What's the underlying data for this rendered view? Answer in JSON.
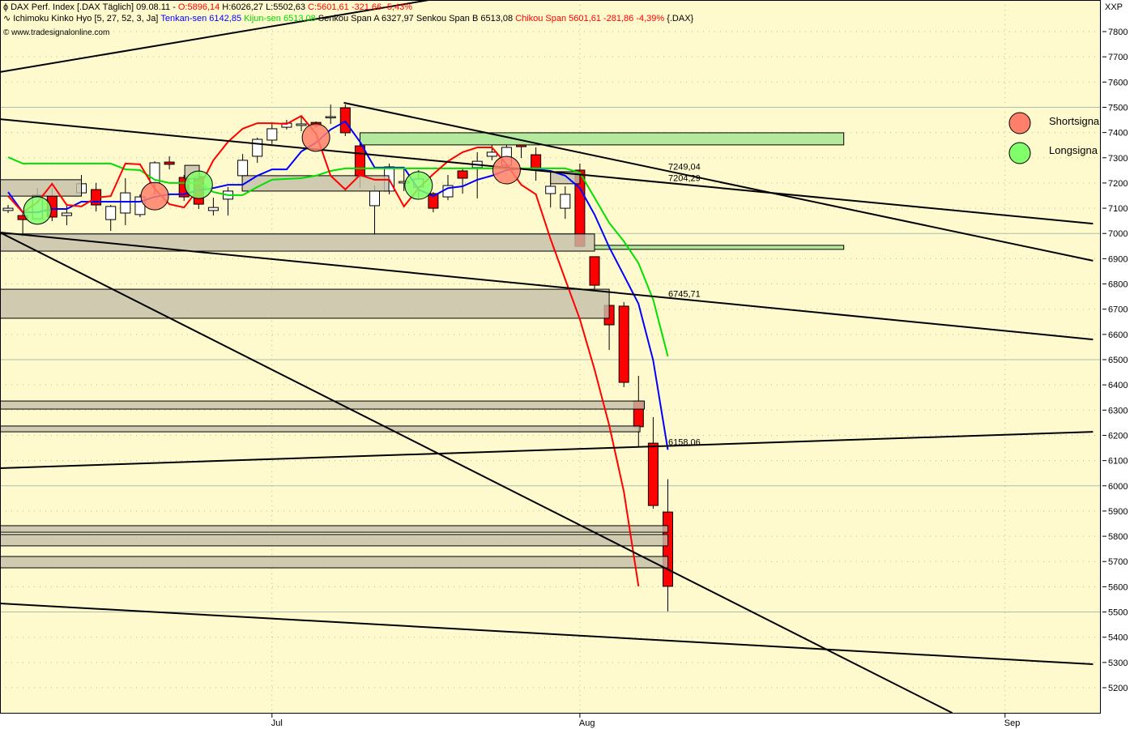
{
  "header": {
    "line1": [
      {
        "text": "DAX Perf. Index [.DAX  Täglich] 09.08.11 -",
        "color": "#000000"
      },
      {
        "text": "O:5896,14",
        "color": "#ff0000"
      },
      {
        "text": "H:6026,27 L:5502,63",
        "color": "#000000"
      },
      {
        "text": "C:5601,61 -321,66 -5,43%",
        "color": "#ff0000"
      }
    ],
    "line2": [
      {
        "text": "Ichimoku Kinko Hyo [5, 27, 52, 3, Ja]",
        "color": "#000000"
      },
      {
        "text": "Tenkan-sen 6142,85",
        "color": "#0000ff"
      },
      {
        "text": "Kijun-sen 6513,08",
        "color": "#00d800"
      },
      {
        "text": "Senkou Span A 6327,97 Senkou Span B 6513,08",
        "color": "#000000"
      },
      {
        "text": "Chikou Span 5601,61 -281,86 -4,39%",
        "color": "#ff0000"
      },
      {
        "text": "{.DAX}",
        "color": "#000000"
      }
    ],
    "copyright": "© www.tradesignalonline.com"
  },
  "axis_corner_label": "XXP",
  "legend": [
    {
      "label": "Shortsigna",
      "color": "#ff7f6a"
    },
    {
      "label": "Longsigna",
      "color": "#80ff6a"
    }
  ],
  "colors": {
    "background": "#fffacd",
    "tenkan": "#0000ff",
    "kijun": "#00e000",
    "chikou": "#ff0000",
    "down_candle": "#ff0000",
    "up_candle": "#ffffff",
    "zone": "#c4bfa9",
    "green_zone": "#b4e89c",
    "short_signal": "#ff7f6a",
    "long_signal": "#80ff6a"
  },
  "chart_data": {
    "type": "candlestick",
    "title": "DAX Perf. Index [.DAX  Täglich]",
    "ylim": [
      5200,
      7800
    ],
    "yticks": [
      5200,
      5300,
      5400,
      5500,
      5600,
      5700,
      5800,
      5900,
      6000,
      6100,
      6200,
      6300,
      6400,
      6500,
      6600,
      6700,
      6800,
      6900,
      7000,
      7100,
      7200,
      7300,
      7400,
      7500,
      7600,
      7700,
      7800
    ],
    "xticks": [
      {
        "label": "Jul",
        "bar": 18
      },
      {
        "label": "Aug",
        "bar": 39
      },
      {
        "label": "Sep",
        "bar": 68
      }
    ],
    "grid": true,
    "ohlc": [
      [
        7091,
        7113,
        7081,
        7100
      ],
      [
        7071,
        7084,
        6988,
        7055
      ],
      [
        7058,
        7181,
        7058,
        7152
      ],
      [
        7148,
        7181,
        7049,
        7065
      ],
      [
        7071,
        7116,
        7033,
        7081
      ],
      [
        7161,
        7232,
        7161,
        7197
      ],
      [
        7174,
        7200,
        7087,
        7113
      ],
      [
        7055,
        7113,
        7010,
        7107
      ],
      [
        7081,
        7219,
        7033,
        7161
      ],
      [
        7075,
        7155,
        7065,
        7145
      ],
      [
        7200,
        7286,
        7155,
        7280
      ],
      [
        7283,
        7306,
        7254,
        7274
      ],
      [
        7222,
        7232,
        7129,
        7145
      ],
      [
        7225,
        7251,
        7097,
        7116
      ],
      [
        7091,
        7142,
        7071,
        7103
      ],
      [
        7136,
        7184,
        7071,
        7168
      ],
      [
        7229,
        7315,
        7229,
        7290
      ],
      [
        7306,
        7380,
        7280,
        7373
      ],
      [
        7370,
        7437,
        7354,
        7415
      ],
      [
        7421,
        7450,
        7412,
        7437
      ],
      [
        7428,
        7466,
        7405,
        7434
      ],
      [
        7440,
        7444,
        7418,
        7428
      ],
      [
        7463,
        7511,
        7434,
        7463
      ],
      [
        7498,
        7511,
        7386,
        7399
      ],
      [
        7347,
        7354,
        7180,
        7225
      ],
      [
        7110,
        7190,
        6994,
        7168
      ],
      [
        7168,
        7277,
        7155,
        7264
      ],
      [
        7200,
        7264,
        7168,
        7206
      ],
      [
        7184,
        7251,
        7139,
        7216
      ],
      [
        7158,
        7164,
        7084,
        7100
      ],
      [
        7145,
        7232,
        7132,
        7190
      ],
      [
        7248,
        7261,
        7158,
        7219
      ],
      [
        7261,
        7322,
        7139,
        7286
      ],
      [
        7306,
        7354,
        7290,
        7322
      ],
      [
        7270,
        7363,
        7258,
        7341
      ],
      [
        7370,
        7380,
        7299,
        7344
      ],
      [
        7312,
        7341,
        7209,
        7251
      ],
      [
        7158,
        7242,
        7103,
        7187
      ],
      [
        7100,
        7187,
        7058,
        7155
      ],
      [
        7251,
        7277,
        6949,
        6949
      ],
      [
        6908,
        6908,
        6770,
        6795
      ],
      [
        6715,
        6715,
        6538,
        6638
      ],
      [
        6712,
        6728,
        6391,
        6410
      ],
      [
        6336,
        6436,
        6153,
        6234
      ],
      [
        6169,
        6272,
        5909,
        5922
      ],
      [
        5896.14,
        6026.27,
        5502.63,
        5601.61
      ]
    ],
    "series": [
      {
        "name": "Tenkan-sen",
        "values": [
          7164,
          7084,
          7084,
          7097,
          7097,
          7126,
          7126,
          7126,
          7126,
          7126,
          7145,
          7155,
          7155,
          7171,
          7180,
          7193,
          7193,
          7229,
          7254,
          7254,
          7325,
          7360,
          7412,
          7444,
          7363,
          7261,
          7261,
          7261,
          7174,
          7148,
          7180,
          7187,
          7213,
          7229,
          7251,
          7258,
          7254,
          7248,
          7229,
          7180,
          7075,
          6946,
          6834,
          6721,
          6497,
          6142.85
        ]
      },
      {
        "name": "Kijun-sen",
        "values": [
          7302,
          7277,
          7277,
          7277,
          7277,
          7277,
          7277,
          7277,
          7254,
          7251,
          7213,
          7200,
          7200,
          7200,
          7164,
          7152,
          7152,
          7184,
          7213,
          7216,
          7219,
          7229,
          7248,
          7258,
          7258,
          7258,
          7258,
          7258,
          7258,
          7258,
          7258,
          7258,
          7258,
          7258,
          7258,
          7258,
          7258,
          7258,
          7258,
          7241,
          7142,
          7042,
          6969,
          6882,
          6738,
          6513.08
        ]
      },
      {
        "name": "Chikou Span",
        "values": [
          7148,
          7084,
          7123,
          7197,
          7113,
          7107,
          7142,
          7148,
          7277,
          7274,
          7177,
          7116,
          7103,
          7177,
          7290,
          7363,
          7415,
          7437,
          7437,
          7434,
          7466,
          7396,
          7229,
          7174,
          7232,
          7213,
          7213,
          7107,
          7180,
          7235,
          7286,
          7322,
          7341,
          7341,
          7274,
          7193,
          7155,
          6978,
          6818,
          6660,
          6461,
          6240,
          5977,
          5601.61
        ]
      }
    ],
    "signals": [
      {
        "type": "short",
        "bar": 10,
        "price": 7148
      },
      {
        "type": "short",
        "bar": 21,
        "price": 7380
      },
      {
        "type": "short",
        "bar": 34,
        "price": 7251
      },
      {
        "type": "long",
        "bar": 2,
        "price": 7091
      },
      {
        "type": "long",
        "bar": 13,
        "price": 7193
      },
      {
        "type": "long",
        "bar": 28,
        "price": 7190
      }
    ],
    "trendlines": [
      {
        "from": [
          -0.55,
          7640
        ],
        "to": [
          28.7,
          7925
        ]
      },
      {
        "from": [
          -0.55,
          7453
        ],
        "to": [
          74.0,
          7039
        ]
      },
      {
        "from": [
          22.9,
          7518
        ],
        "to": [
          74.0,
          6892
        ]
      },
      {
        "from": [
          -0.55,
          7004
        ],
        "to": [
          74.0,
          6580
        ]
      },
      {
        "from": [
          -0.55,
          6070
        ],
        "to": [
          74.0,
          6214
        ]
      },
      {
        "from": [
          -0.55,
          7004
        ],
        "to": [
          64.4,
          5100
        ]
      },
      {
        "from": [
          -0.55,
          5534
        ],
        "to": [
          74.0,
          5293
        ]
      }
    ],
    "zones": [
      {
        "kind": "gray",
        "bars": [
          -0.55,
          5.0
        ],
        "prices": [
          7213,
          7148
        ]
      },
      {
        "kind": "gray",
        "bars": [
          12.05,
          13.04
        ],
        "prices": [
          7270,
          7216
        ]
      },
      {
        "kind": "gray",
        "bars": [
          15.97,
          25.97
        ],
        "prices": [
          7229,
          7168
        ]
      },
      {
        "kind": "gray",
        "bars": [
          37.0,
          39.0
        ],
        "prices": [
          7245,
          7197
        ]
      },
      {
        "kind": "gray",
        "bars": [
          -0.55,
          40.0
        ],
        "prices": [
          6998,
          6930
        ]
      },
      {
        "kind": "gray",
        "bars": [
          -0.55,
          41.0
        ],
        "prices": [
          6779,
          6664
        ]
      },
      {
        "kind": "gray",
        "bars": [
          -0.55,
          43.4
        ],
        "prices": [
          6336,
          6304
        ]
      },
      {
        "kind": "gray",
        "bars": [
          -0.55,
          43.1
        ],
        "prices": [
          6237,
          6214
        ]
      },
      {
        "kind": "gray",
        "bars": [
          -0.55,
          45.0
        ],
        "prices": [
          5842,
          5816
        ]
      },
      {
        "kind": "gray",
        "bars": [
          -0.55,
          45.0
        ],
        "prices": [
          5807,
          5762
        ]
      },
      {
        "kind": "gray",
        "bars": [
          -0.55,
          45.0
        ],
        "prices": [
          5720,
          5675
        ]
      },
      {
        "kind": "green",
        "bars": [
          24.0,
          57.0
        ],
        "prices": [
          7399,
          7351
        ]
      },
      {
        "kind": "green",
        "bars": [
          40.0,
          57.0
        ],
        "prices": [
          6953,
          6937
        ]
      }
    ],
    "annotations": [
      {
        "text": "7249,04",
        "price": 7249.04
      },
      {
        "text": "7204,29",
        "price": 7204.29
      },
      {
        "text": "6745,71",
        "price": 6745.71
      },
      {
        "text": "6158,06",
        "price": 6158.06
      }
    ]
  }
}
